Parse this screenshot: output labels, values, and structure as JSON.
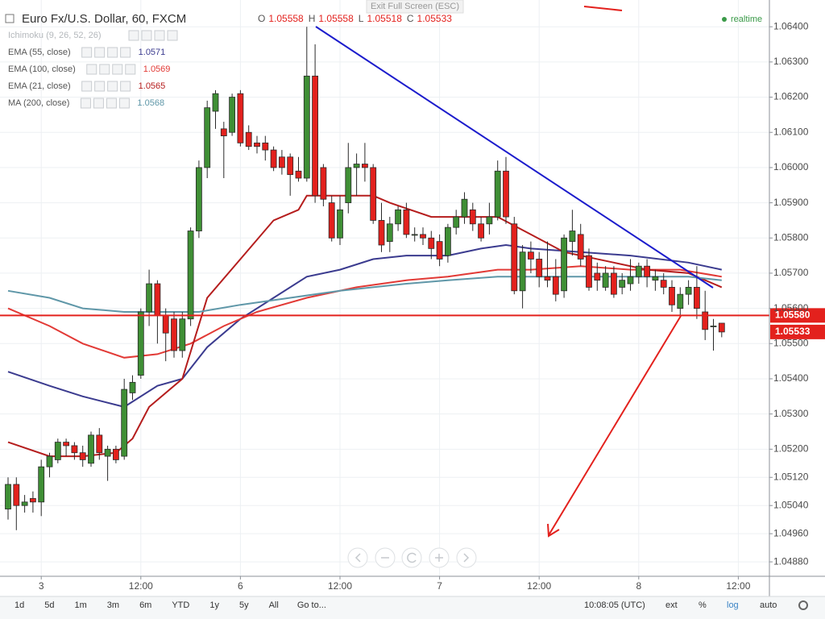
{
  "chart_data": {
    "type": "candlestick",
    "title": "Euro Fx/U.S. Dollar, 60, FXCM",
    "ohlc_keys": [
      "O",
      "H",
      "L",
      "C"
    ],
    "exit_label": "Exit Full Screen (ESC)",
    "status": "realtime",
    "ichimoku": "Ichimoku (9, 26, 52, 26)",
    "categories": [
      null,
      null,
      null,
      null,
      "3",
      null,
      null,
      null,
      null,
      null,
      null,
      null,
      null,
      null,
      null,
      null,
      "12:00",
      null,
      null,
      null,
      null,
      null,
      null,
      null,
      null,
      null,
      null,
      null,
      "6",
      null,
      null,
      null,
      null,
      null,
      null,
      null,
      null,
      null,
      null,
      null,
      "12:00",
      null,
      null,
      null,
      null,
      null,
      null,
      null,
      null,
      null,
      null,
      null,
      "7",
      null,
      null,
      null,
      null,
      null,
      null,
      null,
      null,
      null,
      null,
      null,
      "12:00",
      null,
      null,
      null,
      null,
      null,
      null,
      null,
      null,
      null,
      null,
      null,
      "8",
      null,
      null,
      null,
      null,
      null,
      null,
      null,
      null,
      null,
      null,
      null,
      "12:00"
    ],
    "open": [
      1.0503,
      1.051,
      1.0504,
      1.0506,
      1.0505,
      1.0515,
      1.0517,
      1.0522,
      1.0521,
      1.0519,
      1.0516,
      1.0524,
      1.0518,
      1.052,
      1.0518,
      1.0536,
      1.0541,
      1.0559,
      1.0567,
      1.0558,
      1.0557,
      1.0548,
      1.0557,
      1.0582,
      1.06,
      1.0616,
      1.0611,
      1.061,
      1.0621,
      1.061,
      1.0607,
      1.0607,
      1.0605,
      1.0603,
      1.0603,
      1.0599,
      1.0597,
      1.0626,
      1.06,
      1.059,
      1.058,
      1.059,
      1.06,
      1.0601,
      1.06,
      1.0585,
      1.0579,
      1.0584,
      1.0588,
      1.0581,
      1.0581,
      1.058,
      1.0579,
      1.0575,
      1.0583,
      1.0586,
      1.0588,
      1.0584,
      1.0584,
      1.0586,
      1.0599,
      1.0584,
      1.0565,
      1.0576,
      1.0574,
      1.0569,
      1.0569,
      1.0565,
      1.0579,
      1.0581,
      1.0575,
      1.057,
      1.0566,
      1.057,
      1.0566,
      1.0567,
      1.0569,
      1.0572,
      1.0568,
      1.0568,
      1.0566,
      1.056,
      1.0564,
      1.0566,
      1.0559,
      1.0555,
      1.05558,
      null,
      null
    ],
    "high": [
      1.0512,
      1.0512,
      1.0507,
      1.0508,
      1.0517,
      1.0519,
      1.0523,
      1.0523,
      1.0522,
      1.0521,
      1.0525,
      1.0526,
      1.0521,
      1.0521,
      1.054,
      1.0541,
      1.056,
      1.0571,
      1.0568,
      1.056,
      1.0559,
      1.0559,
      1.0583,
      1.0602,
      1.0619,
      1.0622,
      1.0613,
      1.0621,
      1.0622,
      1.0612,
      1.0609,
      1.0609,
      1.0606,
      1.0605,
      1.0604,
      1.0603,
      1.064,
      1.0635,
      1.0601,
      1.0592,
      1.0592,
      1.0607,
      1.0604,
      1.0607,
      1.0601,
      1.059,
      1.0586,
      1.0589,
      1.059,
      1.0583,
      1.0583,
      1.0582,
      1.0581,
      1.0584,
      1.0588,
      1.0593,
      1.059,
      1.0586,
      1.059,
      1.0602,
      1.0603,
      1.0586,
      1.0578,
      1.0579,
      1.0576,
      1.0579,
      1.0574,
      1.0581,
      1.0588,
      1.0584,
      1.0577,
      1.0573,
      1.0572,
      1.0572,
      1.057,
      1.0574,
      1.0573,
      1.0574,
      1.0571,
      1.057,
      1.0568,
      1.0566,
      1.0568,
      1.0572,
      1.0565,
      1.0557,
      1.05558,
      null,
      null
    ],
    "low": [
      1.05,
      1.0497,
      1.0502,
      1.0502,
      1.0501,
      1.0512,
      1.0516,
      1.0518,
      1.0517,
      1.0515,
      1.0515,
      1.0517,
      1.0511,
      1.0516,
      1.0517,
      1.0534,
      1.054,
      1.0555,
      1.055,
      1.0545,
      1.0546,
      1.0546,
      1.0555,
      1.058,
      1.0597,
      1.0611,
      1.0597,
      1.0609,
      1.0606,
      1.0605,
      1.0604,
      1.0602,
      1.0599,
      1.0598,
      1.0592,
      1.0596,
      1.0596,
      1.059,
      1.0589,
      1.0579,
      1.0578,
      1.0587,
      1.0592,
      1.0596,
      1.0584,
      1.0576,
      1.0576,
      1.0582,
      1.058,
      1.0579,
      1.0578,
      1.0574,
      1.0572,
      1.0573,
      1.0581,
      1.0584,
      1.0582,
      1.0579,
      1.0581,
      1.0585,
      1.0584,
      1.0564,
      1.056,
      1.057,
      1.0566,
      1.0566,
      1.0562,
      1.0563,
      1.0575,
      1.0572,
      1.0565,
      1.0565,
      1.0565,
      1.0563,
      1.0564,
      1.0565,
      1.0567,
      1.0566,
      1.0565,
      1.0564,
      1.0559,
      1.0558,
      1.0561,
      1.0557,
      1.0551,
      1.0548,
      1.05518,
      null,
      null
    ],
    "close": [
      1.051,
      1.0504,
      1.0505,
      1.0505,
      1.0515,
      1.0518,
      1.0522,
      1.0521,
      1.0519,
      1.0517,
      1.0524,
      1.0519,
      1.052,
      1.0517,
      1.0537,
      1.0539,
      1.0559,
      1.0567,
      1.0558,
      1.0553,
      1.0548,
      1.0557,
      1.0582,
      1.06,
      1.0617,
      1.0621,
      1.0609,
      1.062,
      1.0607,
      1.0606,
      1.0606,
      1.0605,
      1.06,
      1.06,
      1.0598,
      1.0597,
      1.0626,
      1.0592,
      1.0591,
      1.058,
      1.0588,
      1.06,
      1.0601,
      1.06,
      1.0585,
      1.0578,
      1.0584,
      1.0588,
      1.0581,
      1.0581,
      1.058,
      1.0577,
      1.0574,
      1.0583,
      1.0586,
      1.0591,
      1.0584,
      1.058,
      1.0586,
      1.0599,
      1.0586,
      1.0565,
      1.0576,
      1.0574,
      1.0569,
      1.0568,
      1.0564,
      1.058,
      1.0582,
      1.0574,
      1.0566,
      1.0568,
      1.057,
      1.0564,
      1.0568,
      1.0569,
      1.0572,
      1.0569,
      1.0569,
      1.0566,
      1.0561,
      1.0564,
      1.0566,
      1.056,
      1.0554,
      1.0555,
      1.05533,
      null,
      null
    ],
    "up_color": "#3f8f35",
    "down_color": "#e3211d",
    "series": [
      {
        "name": "EMA (55, close)",
        "color": "#3b3b8f",
        "legend_value": 1.0571,
        "x": [
          0,
          5,
          9,
          14,
          18,
          21,
          24,
          28,
          32,
          36,
          40,
          44,
          48,
          53,
          57,
          60,
          63,
          69,
          75,
          82,
          86
        ],
        "values": [
          1.0542,
          1.0538,
          1.0535,
          1.0532,
          1.0538,
          1.054,
          1.0549,
          1.0557,
          1.0563,
          1.0569,
          1.0571,
          1.0574,
          1.0575,
          1.0575,
          1.0577,
          1.0578,
          1.0577,
          1.0576,
          1.0575,
          1.0573,
          1.0571
        ]
      },
      {
        "name": "EMA (100, close)",
        "color": "#e23a36",
        "legend_value": 1.0569,
        "x": [
          0,
          5,
          9,
          14,
          18,
          22,
          26,
          30,
          36,
          42,
          48,
          53,
          59,
          63,
          69,
          75,
          81,
          86
        ],
        "values": [
          1.056,
          1.0555,
          1.055,
          1.0546,
          1.0547,
          1.055,
          1.0555,
          1.0559,
          1.0563,
          1.0566,
          1.0568,
          1.0569,
          1.0571,
          1.0571,
          1.0572,
          1.0571,
          1.0571,
          1.0569
        ]
      },
      {
        "name": "EMA (21, close)",
        "color": "#b51d1d",
        "legend_value": 1.0565,
        "x": [
          0,
          5,
          9,
          13,
          15,
          17,
          21,
          24,
          28,
          32,
          35,
          36,
          40,
          44,
          46,
          51,
          55,
          59,
          63,
          67,
          73,
          77,
          82,
          86
        ],
        "values": [
          1.0522,
          1.0518,
          1.0518,
          1.0519,
          1.0523,
          1.0532,
          1.054,
          1.0563,
          1.0574,
          1.0585,
          1.0588,
          1.0592,
          1.0592,
          1.0592,
          1.059,
          1.0586,
          1.0586,
          1.0586,
          1.0581,
          1.0576,
          1.0573,
          1.0571,
          1.057,
          1.0566
        ]
      },
      {
        "name": "MA (200, close)",
        "color": "#5f97a8",
        "legend_value": 1.0568,
        "x": [
          0,
          5,
          9,
          14,
          18,
          23,
          28,
          34,
          40,
          48,
          53,
          59,
          63,
          69,
          75,
          82,
          86
        ],
        "values": [
          1.0565,
          1.0563,
          1.056,
          1.0559,
          1.0559,
          1.0559,
          1.0561,
          1.0563,
          1.0565,
          1.0567,
          1.0568,
          1.0569,
          1.0569,
          1.0569,
          1.0569,
          1.0569,
          1.0568
        ]
      }
    ],
    "ylim": [
      1.04839,
      1.06476
    ],
    "yticks": [
      {
        "value": 1.064,
        "label": "1.06400"
      },
      {
        "value": 1.063,
        "label": "1.06300"
      },
      {
        "value": 1.062,
        "label": "1.06200"
      },
      {
        "value": 1.061,
        "label": "1.06100"
      },
      {
        "value": 1.06,
        "label": "1.06000"
      },
      {
        "value": 1.059,
        "label": "1.05900"
      },
      {
        "value": 1.058,
        "label": "1.05800"
      },
      {
        "value": 1.057,
        "label": "1.05700"
      },
      {
        "value": 1.056,
        "label": "1.05600"
      },
      {
        "value": 1.055,
        "label": "1.05500"
      },
      {
        "value": 1.054,
        "label": "1.05400"
      },
      {
        "value": 1.053,
        "label": "1.05300"
      },
      {
        "value": 1.052,
        "label": "1.05200"
      },
      {
        "value": 1.0512,
        "label": "1.05120"
      },
      {
        "value": 1.0504,
        "label": "1.05040"
      },
      {
        "value": 1.0496,
        "label": "1.04960"
      },
      {
        "value": 1.0488,
        "label": "1.04880"
      }
    ],
    "grid": true,
    "hline": {
      "value": 1.0558,
      "label": "1.05580",
      "color": "#e3211d"
    },
    "ranges": [
      "1d",
      "5d",
      "1m",
      "3m",
      "6m",
      "YTD",
      "1y",
      "5y",
      "All"
    ],
    "goto": "Go to...",
    "clock": "10:08:05 (UTC)",
    "options": [
      "ext",
      "%",
      "log",
      "auto"
    ]
  }
}
